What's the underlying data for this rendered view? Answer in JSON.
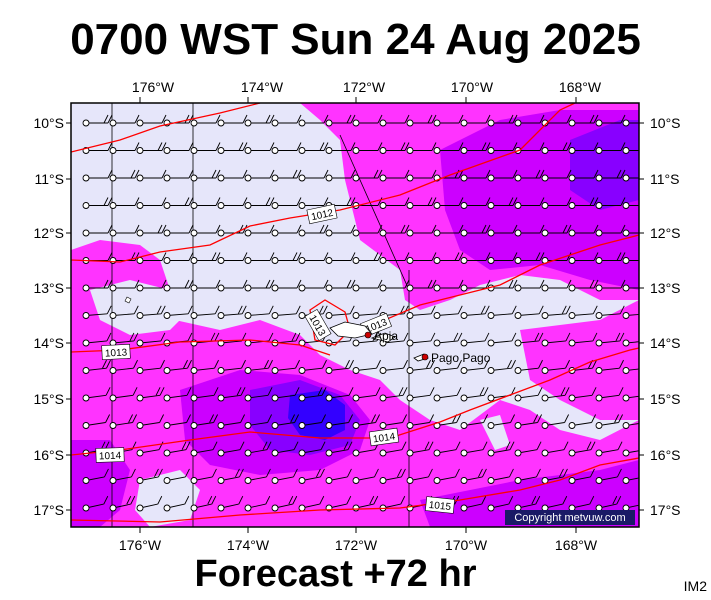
{
  "title": "0700 WST Sun 24 Aug 2025",
  "subtitle": "Forecast +72 hr",
  "product_code": "IM2",
  "copyright": "Copyright metvuw.com",
  "colors": {
    "background": "#e6e6fa",
    "precip_light": "#ff33ff",
    "precip_medium": "#cc00ff",
    "precip_heavy": "#8800ff",
    "precip_max": "#3300ff",
    "isobar": "#ff0000",
    "wind_barb": "#000000"
  },
  "map": {
    "lon_labels": [
      "176°W",
      "174°W",
      "172°W",
      "170°W",
      "168°W"
    ],
    "lat_labels": [
      "10°S",
      "11°S",
      "12°S",
      "13°S",
      "14°S",
      "15°S",
      "16°S",
      "17°S"
    ],
    "isobar_labels": [
      "1012",
      "1013",
      "1013",
      "1013",
      "1014",
      "1014",
      "1015"
    ],
    "places": [
      {
        "name": "Apia",
        "icon": "city-dot-icon"
      },
      {
        "name": "Pago Pago",
        "icon": "city-dot-icon"
      }
    ]
  }
}
